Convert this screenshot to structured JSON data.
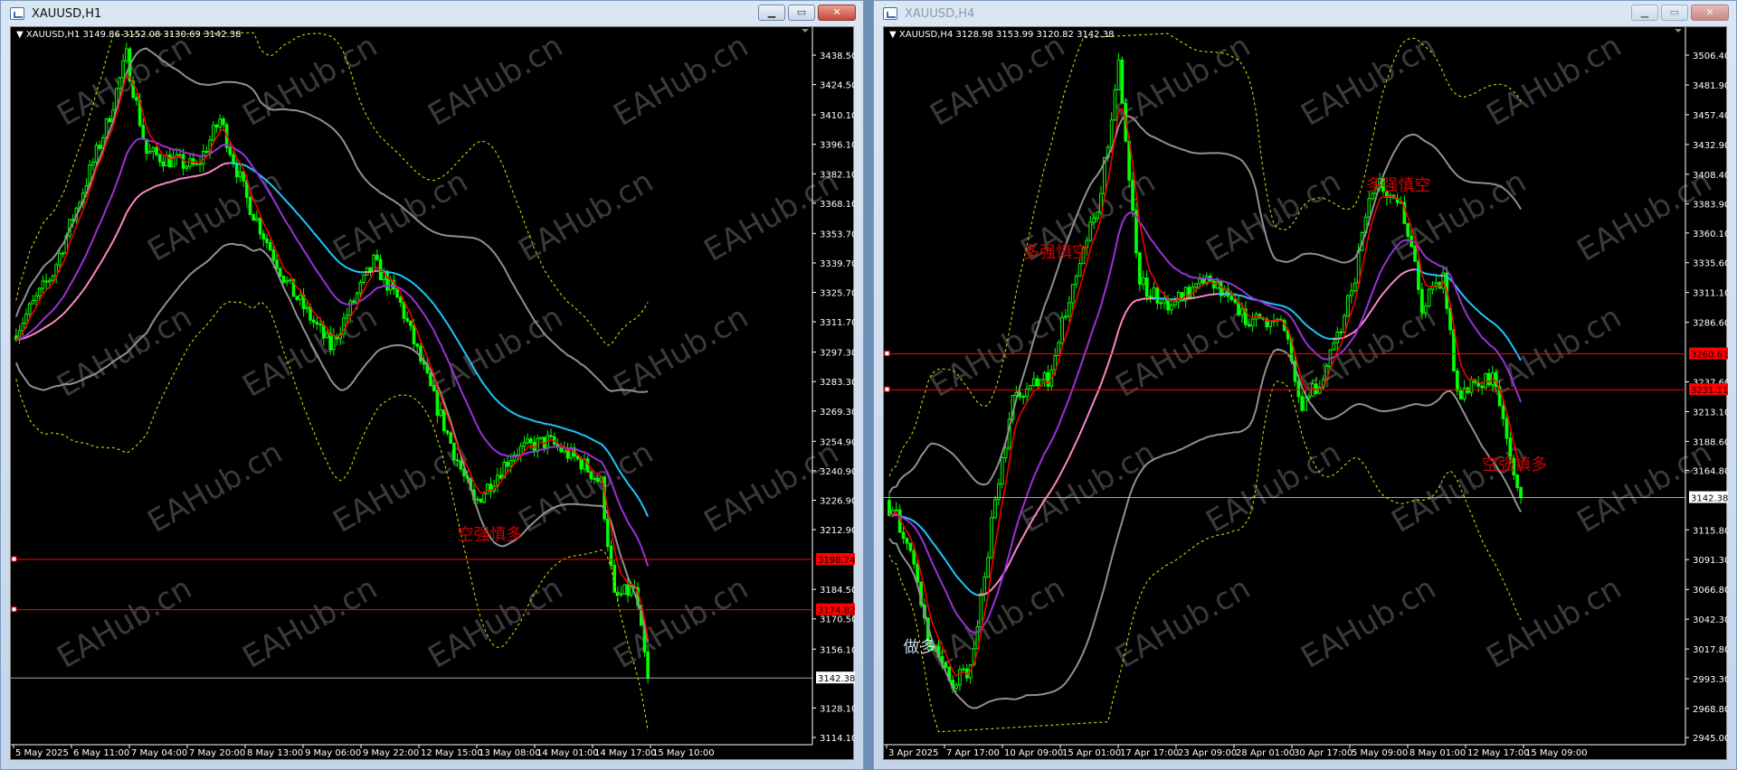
{
  "colors": {
    "candle": "#00ff00",
    "fast_ma": "#ff0000",
    "mid_ma": "#9b30d9",
    "slow_ma_up": "#ff88c8",
    "slow_ma_down": "#1ec8ff",
    "band": "#909090",
    "envelope": "#e8e800",
    "hline": "#ff0000",
    "bid_line": "#c0c0c0",
    "annotation": "#d00000",
    "annotation_light": "#c8d8e8"
  },
  "watermark": "EAHub.cn",
  "windows": [
    {
      "title": "XAUUSD,H1",
      "active": true,
      "buttons": {
        "minimize": "▁",
        "maximize": "▭",
        "close": "✕"
      },
      "header": "XAUUSD,H1  3149.86 3152.08 3130.69 3142.38",
      "price_ticks": [
        "3438.50",
        "3424.50",
        "3410.10",
        "3396.10",
        "3382.10",
        "3368.10",
        "3353.70",
        "3339.70",
        "3325.70",
        "3311.70",
        "3297.30",
        "3283.30",
        "3269.30",
        "3254.90",
        "3240.90",
        "3226.90",
        "3212.90",
        "3184.50",
        "3170.50",
        "3156.10",
        "3128.10",
        "3114.10"
      ],
      "price_range": [
        3114.1,
        3438.5
      ],
      "time_labels": [
        "5 May 2025",
        "6 May 11:00",
        "7 May 04:00",
        "7 May 20:00",
        "8 May 13:00",
        "9 May 06:00",
        "9 May 22:00",
        "12 May 15:00",
        "13 May 08:00",
        "14 May 01:00",
        "14 May 17:00",
        "15 May 10:00"
      ],
      "hlines": [
        {
          "price": 3198.74,
          "label": "3198.74"
        },
        {
          "price": 3174.82,
          "label": "3174.82"
        }
      ],
      "bid": {
        "price": 3142.38,
        "label": "3142.38"
      },
      "annotations": [
        {
          "text": "空强慎多",
          "price": 3208,
          "bar": 132,
          "light": false
        }
      ],
      "chart_data": {
        "type": "candlestick",
        "bars": 190,
        "price_path": [
          [
            0,
            3305
          ],
          [
            12,
            3335
          ],
          [
            28,
            3405
          ],
          [
            34,
            3438
          ],
          [
            40,
            3392
          ],
          [
            55,
            3385
          ],
          [
            62,
            3408
          ],
          [
            70,
            3370
          ],
          [
            82,
            3330
          ],
          [
            95,
            3300
          ],
          [
            108,
            3340
          ],
          [
            116,
            3320
          ],
          [
            126,
            3275
          ],
          [
            138,
            3225
          ],
          [
            150,
            3250
          ],
          [
            160,
            3255
          ],
          [
            170,
            3245
          ],
          [
            176,
            3235
          ],
          [
            180,
            3180
          ],
          [
            186,
            3185
          ],
          [
            190,
            3142
          ]
        ]
      }
    },
    {
      "title": "XAUUSD,H4",
      "active": false,
      "buttons": {
        "minimize": "▁",
        "maximize": "▭",
        "close": "✕"
      },
      "header": "XAUUSD,H4  3128.98 3153.99 3120.82 3142.38",
      "price_ticks": [
        "3506.40",
        "3481.90",
        "3457.40",
        "3432.90",
        "3408.40",
        "3383.90",
        "3360.10",
        "3335.60",
        "3311.10",
        "3286.60",
        "3237.60",
        "3213.10",
        "3188.60",
        "3164.80",
        "3115.80",
        "3091.30",
        "3066.80",
        "3042.30",
        "3017.80",
        "2993.30",
        "2968.80",
        "2945.00"
      ],
      "price_range": [
        2945.0,
        3506.4
      ],
      "time_labels": [
        "3 Apr 2025",
        "7 Apr 17:00",
        "10 Apr 09:00",
        "15 Apr 01:00",
        "17 Apr 17:00",
        "23 Apr 09:00",
        "28 Apr 01:00",
        "30 Apr 17:00",
        "5 May 09:00",
        "8 May 01:00",
        "12 May 17:00",
        "15 May 09:00"
      ],
      "hlines": [
        {
          "price": 3260.61,
          "label": "3260.61"
        },
        {
          "price": 3231.11,
          "label": "3231.11"
        }
      ],
      "bid": {
        "price": 3142.38,
        "label": "3142.38"
      },
      "annotations": [
        {
          "text": "多强慎空",
          "price": 3340,
          "bar": 38,
          "light": false
        },
        {
          "text": "多强慎空",
          "price": 3395,
          "bar": 135,
          "light": false
        },
        {
          "text": "空强慎多",
          "price": 3165,
          "bar": 168,
          "light": false
        },
        {
          "text": "做多",
          "price": 3015,
          "bar": 4,
          "light": true
        }
      ],
      "chart_data": {
        "type": "candlestick",
        "bars": 180,
        "price_path": [
          [
            0,
            3140
          ],
          [
            6,
            3110
          ],
          [
            12,
            3030
          ],
          [
            18,
            2990
          ],
          [
            24,
            3000
          ],
          [
            30,
            3120
          ],
          [
            36,
            3225
          ],
          [
            46,
            3240
          ],
          [
            54,
            3330
          ],
          [
            60,
            3380
          ],
          [
            66,
            3495
          ],
          [
            72,
            3320
          ],
          [
            80,
            3300
          ],
          [
            92,
            3320
          ],
          [
            102,
            3290
          ],
          [
            112,
            3290
          ],
          [
            118,
            3220
          ],
          [
            124,
            3240
          ],
          [
            132,
            3310
          ],
          [
            138,
            3400
          ],
          [
            146,
            3390
          ],
          [
            152,
            3300
          ],
          [
            158,
            3320
          ],
          [
            162,
            3230
          ],
          [
            172,
            3240
          ],
          [
            176,
            3190
          ],
          [
            180,
            3142
          ]
        ]
      }
    }
  ]
}
